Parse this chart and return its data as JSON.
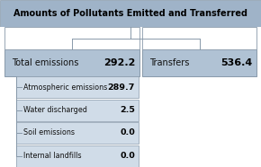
{
  "title": "Amounts of Pollutants Emitted and Transferred",
  "title_bg": "#9fb3c8",
  "box_bg": "#b0c2d4",
  "sub_bg": "#d0dce8",
  "white_bg": "#ffffff",
  "border_color": "#8899aa",
  "main_left_label": "Total emissions",
  "main_left_value": "292.2",
  "main_right_label": "Transfers",
  "main_right_value": "536.4",
  "sub_items": [
    {
      "label": "Atmospheric emissions",
      "value": "289.7"
    },
    {
      "label": "Water discharged",
      "value": "2.5"
    },
    {
      "label": "Soil emissions",
      "value": "0.0"
    },
    {
      "label": "Internal landfills",
      "value": "0.0"
    }
  ],
  "text_color": "#111111",
  "bold_color": "#000000",
  "fig_w": 2.9,
  "fig_h": 1.86,
  "dpi": 100
}
